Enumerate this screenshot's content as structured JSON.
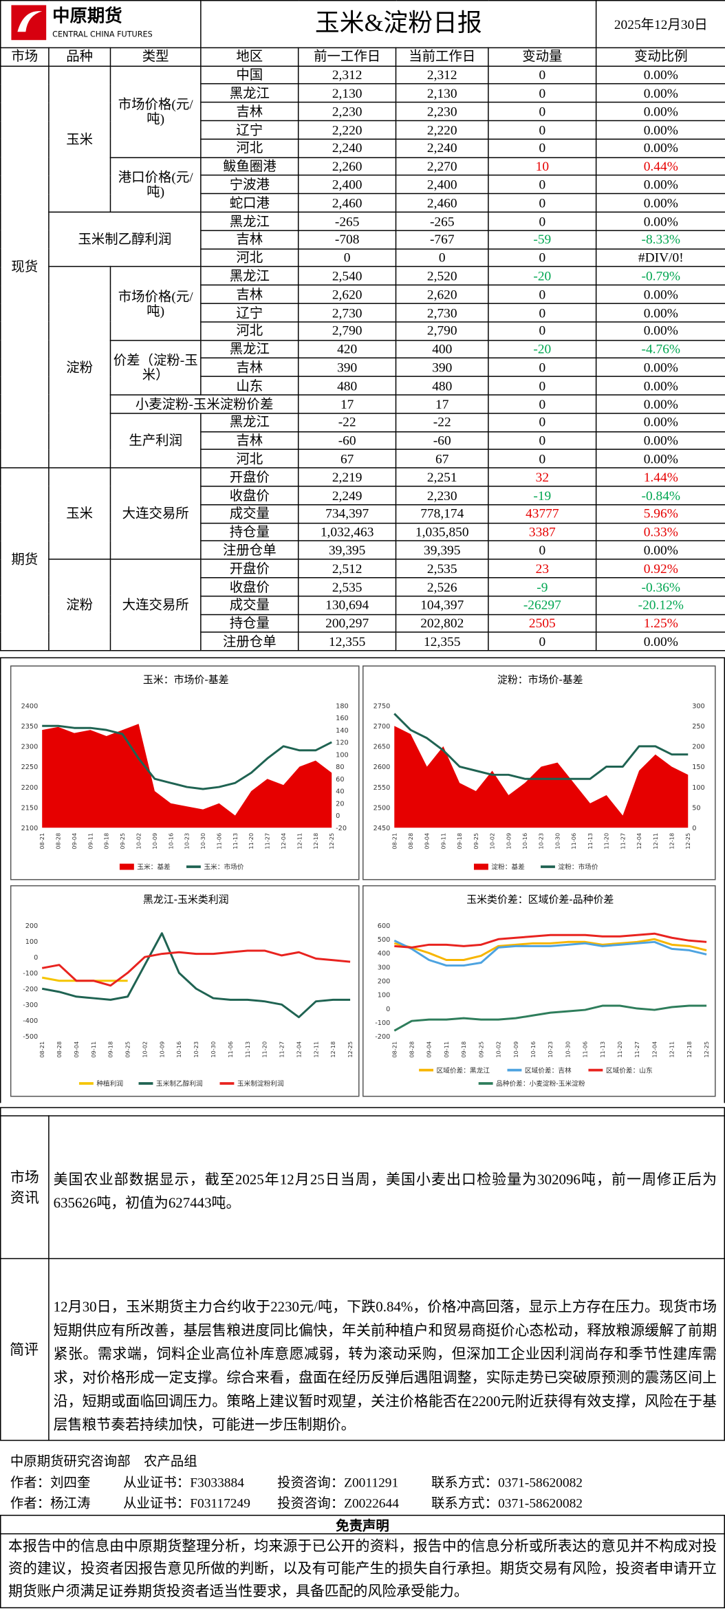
{
  "header": {
    "logo_cn": "中原期货",
    "logo_en": "CENTRAL CHINA FUTURES",
    "title": "玉米&淀粉日报",
    "date": "2025年12月30日"
  },
  "table": {
    "headers": [
      "市场",
      "品种",
      "类型",
      "地区",
      "前一工作日",
      "当前工作日",
      "变动量",
      "变动比例"
    ],
    "sections": [
      {
        "market": "现货",
        "groups": [
          {
            "variety": "玉米",
            "types": [
              {
                "type": "市场价格(元/吨)",
                "rows": [
                  {
                    "name": "中国",
                    "prev": "2,312",
                    "curr": "2,312",
                    "change": "0",
                    "pct": "0.00%"
                  },
                  {
                    "name": "黑龙江",
                    "prev": "2,130",
                    "curr": "2,130",
                    "change": "0",
                    "pct": "0.00%"
                  },
                  {
                    "name": "吉林",
                    "prev": "2,230",
                    "curr": "2,230",
                    "change": "0",
                    "pct": "0.00%"
                  },
                  {
                    "name": "辽宁",
                    "prev": "2,220",
                    "curr": "2,220",
                    "change": "0",
                    "pct": "0.00%"
                  },
                  {
                    "name": "河北",
                    "prev": "2,240",
                    "curr": "2,240",
                    "change": "0",
                    "pct": "0.00%"
                  }
                ]
              },
              {
                "type": "港口价格(元/吨)",
                "rows": [
                  {
                    "name": "鲅鱼圈港",
                    "prev": "2,260",
                    "curr": "2,270",
                    "change": "10",
                    "pct": "0.44%",
                    "color": "#e60000"
                  },
                  {
                    "name": "宁波港",
                    "prev": "2,400",
                    "curr": "2,400",
                    "change": "0",
                    "pct": "0.00%"
                  },
                  {
                    "name": "蛇口港",
                    "prev": "2,460",
                    "curr": "2,460",
                    "change": "0",
                    "pct": "0.00%"
                  }
                ]
              }
            ]
          },
          {
            "label": "玉米制乙醇利润",
            "rows": [
              {
                "name": "黑龙江",
                "prev": "-265",
                "curr": "-265",
                "change": "0",
                "pct": "0.00%"
              },
              {
                "name": "吉林",
                "prev": "-708",
                "curr": "-767",
                "change": "-59",
                "pct": "-8.33%",
                "color": "#00a651"
              },
              {
                "name": "河北",
                "prev": "0",
                "curr": "0",
                "change": "0",
                "pct": "#DIV/0!"
              }
            ]
          },
          {
            "variety": "淀粉",
            "types": [
              {
                "type": "市场价格(元/吨)",
                "rows": [
                  {
                    "name": "黑龙江",
                    "prev": "2,540",
                    "curr": "2,520",
                    "change": "-20",
                    "pct": "-0.79%",
                    "color": "#00a651"
                  },
                  {
                    "name": "吉林",
                    "prev": "2,620",
                    "curr": "2,620",
                    "change": "0",
                    "pct": "0.00%"
                  },
                  {
                    "name": "辽宁",
                    "prev": "2,730",
                    "curr": "2,730",
                    "change": "0",
                    "pct": "0.00%"
                  },
                  {
                    "name": "河北",
                    "prev": "2,790",
                    "curr": "2,790",
                    "change": "0",
                    "pct": "0.00%"
                  }
                ]
              },
              {
                "type": "价差（淀粉-玉米）",
                "rows": [
                  {
                    "name": "黑龙江",
                    "prev": "420",
                    "curr": "400",
                    "change": "-20",
                    "pct": "-4.76%",
                    "color": "#00a651"
                  },
                  {
                    "name": "吉林",
                    "prev": "390",
                    "curr": "390",
                    "change": "0",
                    "pct": "0.00%"
                  },
                  {
                    "name": "山东",
                    "prev": "480",
                    "curr": "480",
                    "change": "0",
                    "pct": "0.00%"
                  }
                ]
              },
              {
                "label": "小麦淀粉-玉米淀粉价差",
                "prev": "17",
                "curr": "17",
                "change": "0",
                "pct": "0.00%"
              },
              {
                "type": "生产利润",
                "rows": [
                  {
                    "name": "黑龙江",
                    "prev": "-22",
                    "curr": "-22",
                    "change": "0",
                    "pct": "0.00%"
                  },
                  {
                    "name": "吉林",
                    "prev": "-60",
                    "curr": "-60",
                    "change": "0",
                    "pct": "0.00%"
                  },
                  {
                    "name": "河北",
                    "prev": "67",
                    "curr": "67",
                    "change": "0",
                    "pct": "0.00%"
                  }
                ]
              }
            ]
          }
        ]
      },
      {
        "market": "期货",
        "groups": [
          {
            "variety": "玉米",
            "types": [
              {
                "type": "大连交易所",
                "rows": [
                  {
                    "name": "开盘价",
                    "prev": "2,219",
                    "curr": "2,251",
                    "change": "32",
                    "pct": "1.44%",
                    "color": "#e60000"
                  },
                  {
                    "name": "收盘价",
                    "prev": "2,249",
                    "curr": "2,230",
                    "change": "-19",
                    "pct": "-0.84%",
                    "color": "#00a651"
                  },
                  {
                    "name": "成交量",
                    "prev": "734,397",
                    "curr": "778,174",
                    "change": "43777",
                    "pct": "5.96%",
                    "color": "#e60000"
                  },
                  {
                    "name": "持仓量",
                    "prev": "1,032,463",
                    "curr": "1,035,850",
                    "change": "3387",
                    "pct": "0.33%",
                    "color": "#e60000"
                  },
                  {
                    "name": "注册仓单",
                    "prev": "39,395",
                    "curr": "39,395",
                    "change": "0",
                    "pct": "0.00%"
                  }
                ]
              }
            ]
          },
          {
            "variety": "淀粉",
            "types": [
              {
                "type": "大连交易所",
                "rows": [
                  {
                    "name": "开盘价",
                    "prev": "2,512",
                    "curr": "2,535",
                    "change": "23",
                    "pct": "0.92%",
                    "color": "#e60000"
                  },
                  {
                    "name": "收盘价",
                    "prev": "2,535",
                    "curr": "2,526",
                    "change": "-9",
                    "pct": "-0.36%",
                    "color": "#00a651"
                  },
                  {
                    "name": "成交量",
                    "prev": "130,694",
                    "curr": "104,397",
                    "change": "-26297",
                    "pct": "-20.12%",
                    "color": "#00a651"
                  },
                  {
                    "name": "持仓量",
                    "prev": "200,297",
                    "curr": "202,802",
                    "change": "2505",
                    "pct": "1.25%",
                    "color": "#e60000"
                  },
                  {
                    "name": "注册仓单",
                    "prev": "12,355",
                    "curr": "12,355",
                    "change": "0",
                    "pct": "0.00%"
                  }
                ]
              }
            ]
          }
        ]
      }
    ]
  },
  "chart_data": [
    {
      "type": "combo",
      "title": "玉米：市场价-基差",
      "categories": [
        "08-21",
        "08-28",
        "09-04",
        "09-11",
        "09-18",
        "09-25",
        "10-02",
        "10-09",
        "10-16",
        "10-23",
        "10-30",
        "11-06",
        "11-13",
        "11-20",
        "11-27",
        "12-04",
        "12-11",
        "12-18",
        "12-25"
      ],
      "series": [
        {
          "name": "玉米：基差",
          "type": "area",
          "axis": "y2",
          "color": "#e60000",
          "values": [
            140,
            145,
            135,
            140,
            130,
            140,
            150,
            40,
            20,
            15,
            10,
            20,
            0,
            40,
            60,
            50,
            80,
            90,
            70
          ]
        },
        {
          "name": "玉米：市场价",
          "type": "line",
          "color": "#1f6352",
          "values": [
            2350,
            2350,
            2345,
            2345,
            2340,
            2330,
            2270,
            2220,
            2210,
            2200,
            2195,
            2200,
            2210,
            2235,
            2270,
            2300,
            2290,
            2290,
            2310
          ]
        }
      ],
      "ylim": [
        2100,
        2400
      ],
      "yticks": [
        2100,
        2150,
        2200,
        2250,
        2300,
        2350,
        2400
      ],
      "y2lim": [
        -20,
        180
      ],
      "y2ticks": [
        -20,
        0,
        20,
        40,
        60,
        80,
        100,
        120,
        140,
        160,
        180
      ],
      "grid": false
    },
    {
      "type": "combo",
      "title": "淀粉：市场价-基差",
      "categories": [
        "08-21",
        "08-28",
        "09-04",
        "09-11",
        "09-18",
        "09-25",
        "10-02",
        "10-09",
        "10-16",
        "10-23",
        "10-30",
        "11-06",
        "11-13",
        "11-20",
        "11-27",
        "12-04",
        "12-11",
        "12-18",
        "12-25"
      ],
      "series": [
        {
          "name": "淀粉：基差",
          "type": "area",
          "axis": "y2",
          "color": "#e60000",
          "values": [
            250,
            230,
            150,
            200,
            110,
            90,
            140,
            80,
            110,
            150,
            160,
            110,
            60,
            80,
            30,
            140,
            180,
            150,
            130
          ]
        },
        {
          "name": "淀粉：市场价",
          "type": "line",
          "color": "#1f6352",
          "values": [
            2730,
            2690,
            2670,
            2640,
            2600,
            2590,
            2580,
            2580,
            2570,
            2570,
            2570,
            2570,
            2570,
            2600,
            2600,
            2650,
            2650,
            2630,
            2630
          ]
        }
      ],
      "ylim": [
        2450,
        2750
      ],
      "yticks": [
        2450,
        2500,
        2550,
        2600,
        2650,
        2700,
        2750
      ],
      "y2lim": [
        0,
        300
      ],
      "y2ticks": [
        0,
        50,
        100,
        150,
        200,
        250,
        300
      ],
      "grid": false
    },
    {
      "type": "line",
      "title": "黑龙江-玉米类利润",
      "categories": [
        "08-21",
        "08-28",
        "09-04",
        "09-11",
        "09-18",
        "09-25",
        "10-02",
        "10-09",
        "10-16",
        "10-23",
        "10-30",
        "11-06",
        "11-13",
        "11-20",
        "11-27",
        "12-04",
        "12-11",
        "12-18",
        "12-25"
      ],
      "series": [
        {
          "name": "种植利润",
          "color": "#f5c400",
          "values": [
            -130,
            -150,
            -150,
            -150,
            -150,
            -150,
            null,
            null,
            null,
            null,
            null,
            null,
            null,
            null,
            null,
            null,
            null,
            null,
            null
          ]
        },
        {
          "name": "玉米制乙醇利润",
          "color": "#1f6352",
          "values": [
            -200,
            -220,
            -250,
            -260,
            -270,
            -250,
            -50,
            150,
            -100,
            -200,
            -260,
            -270,
            -270,
            -280,
            -300,
            -380,
            -280,
            -270,
            -270
          ]
        },
        {
          "name": "玉米制淀粉利润",
          "color": "#e8231f",
          "values": [
            -70,
            -50,
            -150,
            -150,
            -180,
            -100,
            0,
            20,
            30,
            20,
            20,
            30,
            40,
            40,
            10,
            30,
            -10,
            -20,
            -30
          ]
        }
      ],
      "ylim": [
        -500,
        200
      ],
      "yticks": [
        -500,
        -400,
        -300,
        -200,
        -100,
        0,
        100,
        200
      ],
      "grid": false
    },
    {
      "type": "line",
      "title": "玉米类价差：区域价差-品种价差",
      "categories": [
        "08-21",
        "08-28",
        "09-04",
        "09-11",
        "09-18",
        "09-25",
        "10-02",
        "10-09",
        "10-16",
        "10-23",
        "10-30",
        "11-06",
        "11-13",
        "11-20",
        "11-27",
        "12-04",
        "12-11",
        "12-18",
        "12-25"
      ],
      "series": [
        {
          "name": "区域价差：黑龙江",
          "color": "#f7b500",
          "values": [
            470,
            440,
            400,
            350,
            350,
            380,
            450,
            460,
            470,
            470,
            480,
            480,
            460,
            470,
            480,
            500,
            460,
            450,
            420
          ]
        },
        {
          "name": "区域价差：吉林",
          "color": "#4da3e0",
          "values": [
            490,
            430,
            350,
            310,
            310,
            330,
            440,
            450,
            450,
            450,
            460,
            470,
            450,
            460,
            470,
            480,
            430,
            420,
            390
          ]
        },
        {
          "name": "区域价差：山东",
          "color": "#e8231f",
          "values": [
            450,
            440,
            460,
            460,
            450,
            460,
            500,
            510,
            520,
            530,
            530,
            530,
            520,
            520,
            530,
            540,
            510,
            490,
            480
          ]
        },
        {
          "name": "品种价差：小麦淀粉-玉米淀粉",
          "color": "#2e7d5b",
          "values": [
            -160,
            -90,
            -80,
            -80,
            -70,
            -80,
            -80,
            -70,
            -50,
            -30,
            -20,
            -10,
            20,
            20,
            0,
            -10,
            10,
            20,
            20
          ]
        }
      ],
      "ylim": [
        -200,
        600
      ],
      "yticks": [
        -200,
        -100,
        0,
        100,
        200,
        300,
        400,
        500,
        600
      ],
      "grid": false
    }
  ],
  "info": {
    "news_label": "市场资讯",
    "news": "美国农业部数据显示，截至2025年12月25日当周，美国小麦出口检验量为302096吨，前一周修正后为635626吨，初值为627443吨。",
    "comment_label": "简评",
    "comment": "12月30日，玉米期货主力合约收于2230元/吨，下跌0.84%，价格冲高回落，显示上方存在压力。现货市场短期供应有所改善，基层售粮进度同比偏快，年关前种植户和贸易商挺价心态松动，释放粮源缓解了前期紧张。需求端，饲料企业高位补库意愿减弱，转为滚动采购，但深加工企业因利润尚存和季节性建库需求，对价格形成一定支撑。综合来看，盘面在经历反弹后遇阻调整，实际走势已突破原预测的震荡区间上沿，短期或面临回调压力。策略上建议暂时观望，关注价格能否在2200元附近获得有效支撑，风险在于基层售粮节奏若持续加快，可能进一步压制期价。"
  },
  "footer": {
    "department": "中原期货研究咨询部　农产品组",
    "authors": [
      {
        "name": "作者：刘四奎",
        "cert": "从业证书：F3033884",
        "consult": "投资咨询：Z0011291",
        "contact": "联系方式：0371-58620082"
      },
      {
        "name": "作者：杨江涛",
        "cert": "从业证书：F03117249",
        "consult": "投资咨询：Z0022644",
        "contact": "联系方式：0371-58620082"
      }
    ]
  },
  "disclaimer": {
    "title": "免责声明",
    "text": "本报告中的信息由中原期货整理分析，均来源于已公开的资料，报告中的信息分析或所表达的意见并不构成对投资的建议，投资者因报告意见所做的判断，以及有可能产生的损失自行承担。期货交易有风险，投资者申请开立期货账户须满足证券期货投资者适当性要求，具备匹配的风险承受能力。"
  }
}
